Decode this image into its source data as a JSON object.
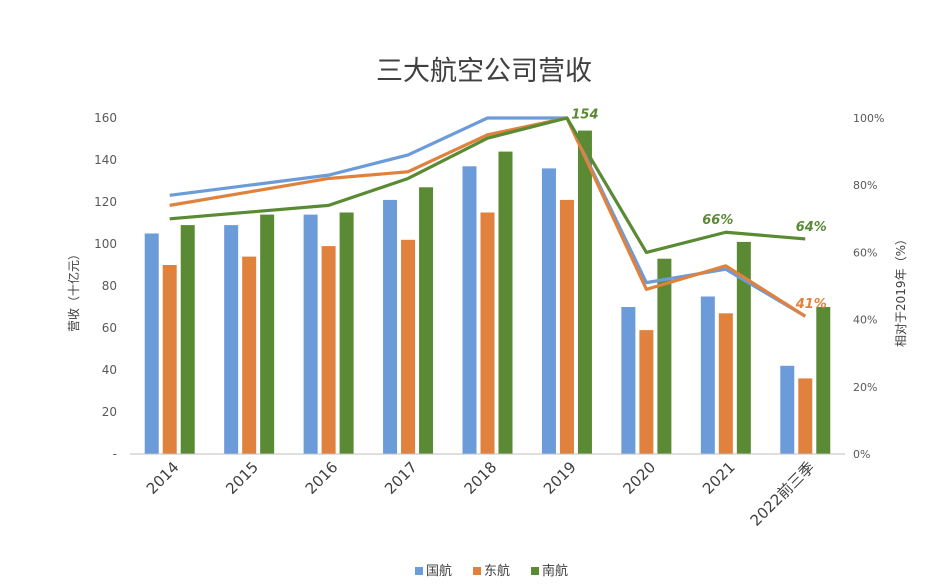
{
  "chart_data": {
    "type": "bar",
    "title": "三大航空公司营收",
    "ylabel": "营收（十亿元）",
    "y2label": "相对于2019年（%）",
    "categories": [
      "2014",
      "2015",
      "2016",
      "2017",
      "2018",
      "2019",
      "2020",
      "2021",
      "2022前三季"
    ],
    "ylim": [
      0,
      160
    ],
    "yticks": [
      "-",
      "20",
      "40",
      "60",
      "80",
      "100",
      "120",
      "140",
      "160"
    ],
    "y2lim": [
      0,
      100
    ],
    "y2ticks": [
      "0%",
      "20%",
      "40%",
      "60%",
      "80%",
      "100%"
    ],
    "legend_position": "bottom",
    "grid": false,
    "series": [
      {
        "name": "国航",
        "color": "#6b9bd9",
        "values": [
          105,
          109,
          114,
          121,
          137,
          136,
          70,
          75,
          42
        ]
      },
      {
        "name": "东航",
        "color": "#e0823d",
        "values": [
          90,
          94,
          99,
          102,
          115,
          121,
          59,
          67,
          36
        ]
      },
      {
        "name": "南航",
        "color": "#5a8a34",
        "values": [
          109,
          114,
          115,
          127,
          144,
          154,
          93,
          101,
          70
        ]
      }
    ],
    "line_series": [
      {
        "color": "#6b9bd9",
        "values": [
          77,
          80,
          83,
          89,
          100,
          100,
          51,
          55,
          41
        ]
      },
      {
        "color": "#e0823d",
        "values": [
          74,
          78,
          82,
          84,
          95,
          100,
          49,
          56,
          41
        ]
      },
      {
        "color": "#5a8a34",
        "values": [
          70,
          72,
          74,
          82,
          94,
          100,
          60,
          66,
          64
        ]
      }
    ],
    "annotations": [
      {
        "text": "154",
        "color": "#5a8a34",
        "category": "2019",
        "series": "南航",
        "axis": "left",
        "value": 154
      },
      {
        "text": "66%",
        "color": "#5a8a34",
        "category": "2021",
        "axis": "right",
        "value": 66
      },
      {
        "text": "64%",
        "color": "#5a8a34",
        "category": "2022前三季",
        "axis": "right",
        "value": 64
      },
      {
        "text": "41%",
        "color": "#e0823d",
        "category": "2022前三季",
        "axis": "right",
        "value": 41
      }
    ]
  }
}
